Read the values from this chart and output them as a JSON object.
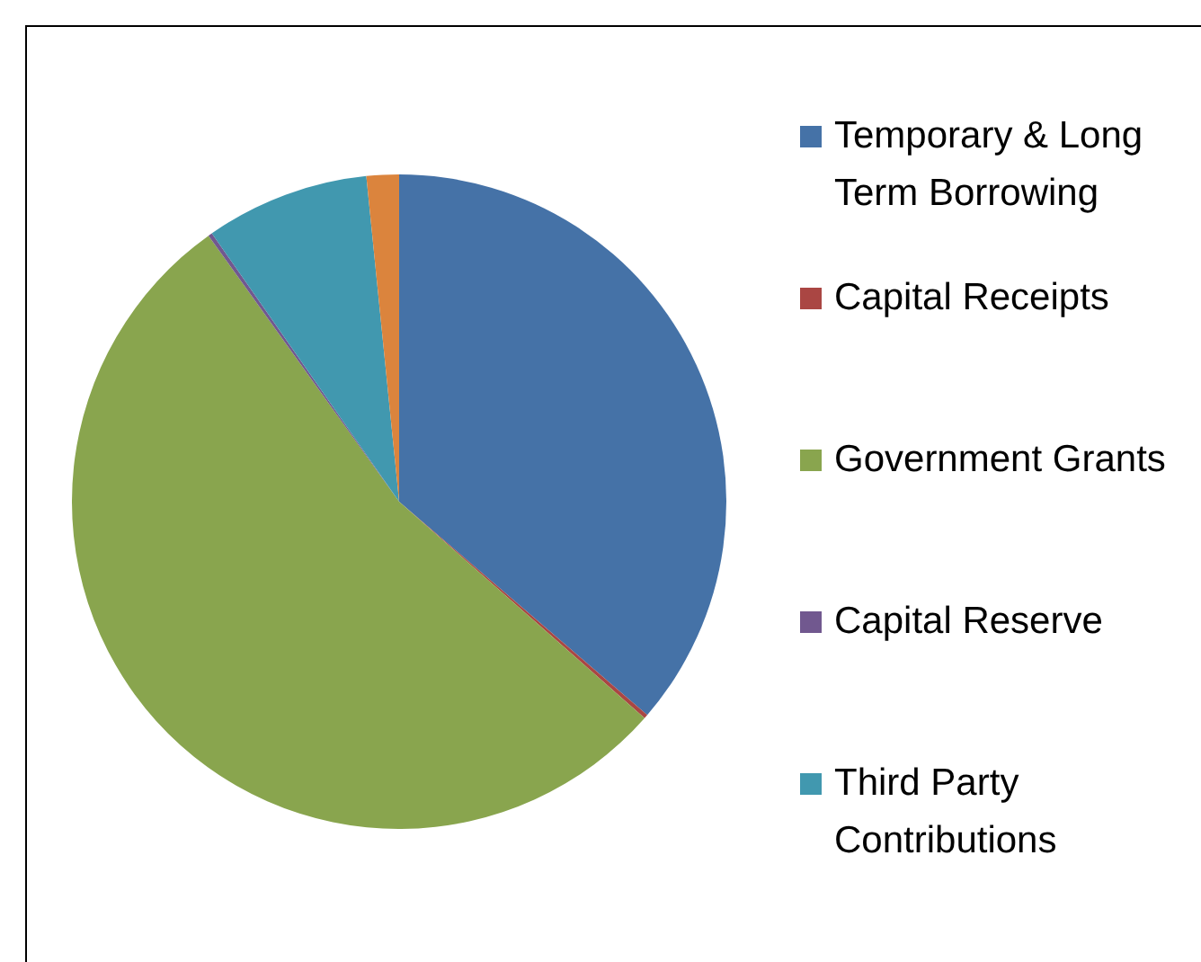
{
  "chart_data": {
    "type": "pie",
    "categories": [
      "Temporary & Long Term Borrowing",
      "Capital Receipts",
      "Government Grants",
      "Capital Reserve",
      "Third Party Contributions",
      null
    ],
    "values": [
      36.3,
      0.2,
      53.6,
      0.2,
      8.1,
      1.6
    ],
    "colors": [
      "#4572a7",
      "#aa4643",
      "#89a54e",
      "#71588f",
      "#4198af",
      "#db843d"
    ],
    "legend": "right"
  }
}
